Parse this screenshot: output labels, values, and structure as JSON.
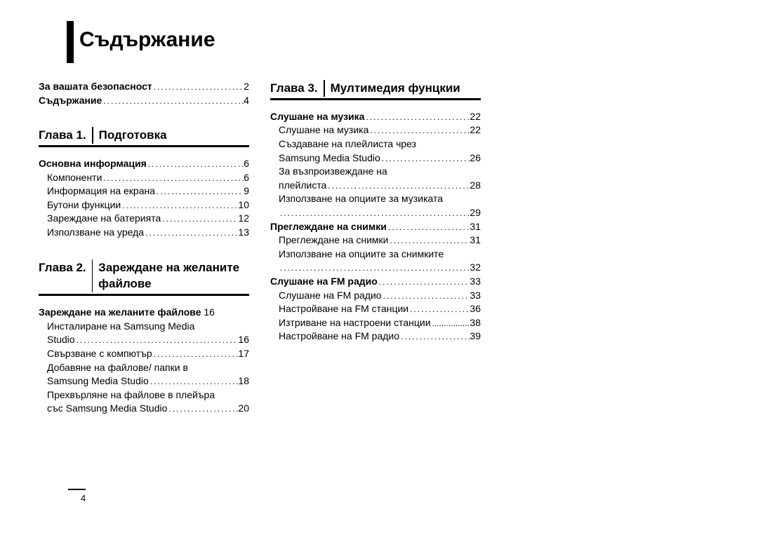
{
  "title": "Съдържание",
  "page_number": "4",
  "pre_items": [
    {
      "label": "За вашата безопасност",
      "page": "2",
      "bold": true
    },
    {
      "label": "Съдържание",
      "page": "4",
      "bold": true
    }
  ],
  "chapters": [
    {
      "num": "Глава 1.",
      "title": "Подготовка",
      "sections": [
        {
          "label": "Основна информация",
          "page": "6",
          "bold": true
        },
        {
          "label": "Компоненти",
          "page": "6",
          "sub": true
        },
        {
          "label": "Информация на екрана",
          "page": "9",
          "sub": true
        },
        {
          "label": "Бутони функции",
          "page": "10",
          "sub": true
        },
        {
          "label": "Зареждане на батерията",
          "page": "12",
          "sub": true
        },
        {
          "label": "Използване на уреда",
          "page": "13",
          "sub": true
        }
      ]
    },
    {
      "num": "Глава 2.",
      "title": "Зареждане на желаните файлове",
      "sections": [
        {
          "label": "Зареждане на желаните файлове",
          "page": "16",
          "bold": true,
          "nodots": true
        },
        {
          "label_lines": [
            "Инсталиране на Samsung Media",
            "Studio"
          ],
          "page": "16",
          "sub": true
        },
        {
          "label": "Свързване с компютър",
          "page": "17",
          "sub": true
        },
        {
          "label_lines": [
            "Добавяне на файлове/ папки в",
            "Samsung Media Studio"
          ],
          "page": "18",
          "sub": true
        },
        {
          "label_lines": [
            "Прехвърляне на файлове в плейъра",
            "със Samsung Media Studio"
          ],
          "page": "20",
          "sub": true
        }
      ]
    },
    {
      "num": "Глава 3.",
      "title": "Мултимедия фунцкии",
      "sections": [
        {
          "label": "Слушане на музика",
          "page": "22",
          "bold": true
        },
        {
          "label": "Слушане на музика",
          "page": "22",
          "sub": true
        },
        {
          "label_lines": [
            "Създаване на плейлиста чрез",
            "Samsung Media Studio"
          ],
          "page": "26",
          "sub": true
        },
        {
          "label_lines": [
            "За възпроизвеждане на",
            "плейлиста"
          ],
          "page": "28",
          "sub": true
        },
        {
          "label_lines": [
            "Използване на опциите за музиката",
            ""
          ],
          "page": "29",
          "sub": true
        },
        {
          "label": "Преглеждане на снимки",
          "page": "31",
          "bold": true
        },
        {
          "label": "Преглеждане на снимки",
          "page": "31",
          "sub": true
        },
        {
          "label_lines": [
            "Използване на опциите за снимките",
            ""
          ],
          "page": "32",
          "sub": true
        },
        {
          "label": "Слушане на FM радио",
          "page": "33",
          "bold": true
        },
        {
          "label": "Слушане на FM радио",
          "page": "33",
          "sub": true
        },
        {
          "label": "Настройване на FM станции",
          "page": "36",
          "sub": true
        },
        {
          "label": "Изтриване на настроени станции",
          "page": "38",
          "sub": true,
          "tight": true
        },
        {
          "label": "Настройване на FM радио",
          "page": "39",
          "sub": true
        }
      ]
    }
  ]
}
